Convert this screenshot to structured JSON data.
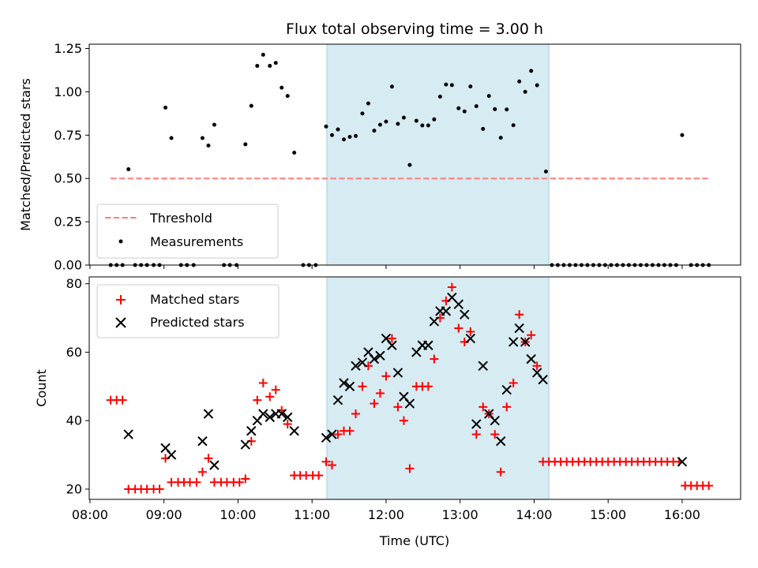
{
  "chart_data": [
    {
      "type": "scatter",
      "title": "Flux total observing time = 3.00 h",
      "xlabel": "",
      "ylabel": "Matched/Predicted stars",
      "xlim": [
        7.99,
        16.79
      ],
      "ylim": [
        0,
        1.275
      ],
      "yticks": [
        0.0,
        0.25,
        0.5,
        0.75,
        1.0,
        1.25
      ],
      "ytick_labels": [
        "0.00",
        "0.25",
        "0.50",
        "0.75",
        "1.00",
        "1.25"
      ],
      "highlight_span": [
        11.2,
        14.2
      ],
      "highlight_color": "#add8e6",
      "legend_position": "lower-left",
      "threshold": {
        "name": "Threshold",
        "value": 0.5,
        "x": [
          8.28,
          16.36
        ],
        "color": "#ff7f7f"
      },
      "series": [
        {
          "name": "Measurements",
          "color": "#000000",
          "points": [
            [
              8.28,
              0
            ],
            [
              8.36,
              0
            ],
            [
              8.44,
              0
            ],
            [
              8.52,
              0.553
            ],
            [
              8.61,
              0
            ],
            [
              8.69,
              0
            ],
            [
              8.77,
              0
            ],
            [
              8.86,
              0
            ],
            [
              8.94,
              0
            ],
            [
              9.02,
              0.909
            ],
            [
              9.1,
              0.733
            ],
            [
              9.23,
              0
            ],
            [
              9.31,
              0
            ],
            [
              9.4,
              0
            ],
            [
              9.52,
              0.733
            ],
            [
              9.6,
              0.69
            ],
            [
              9.68,
              0.81
            ],
            [
              9.81,
              0
            ],
            [
              9.89,
              0
            ],
            [
              9.98,
              0
            ],
            [
              10.1,
              0.697
            ],
            [
              10.18,
              0.919
            ],
            [
              10.26,
              1.15
            ],
            [
              10.34,
              1.214
            ],
            [
              10.43,
              1.15
            ],
            [
              10.51,
              1.167
            ],
            [
              10.59,
              1.024
            ],
            [
              10.67,
              0.976
            ],
            [
              10.76,
              0.649
            ],
            [
              10.88,
              0
            ],
            [
              10.96,
              0
            ],
            [
              11.05,
              0
            ],
            [
              11.19,
              0.8
            ],
            [
              11.27,
              0.75
            ],
            [
              11.35,
              0.783
            ],
            [
              11.43,
              0.725
            ],
            [
              11.51,
              0.74
            ],
            [
              11.59,
              0.745
            ],
            [
              11.68,
              0.875
            ],
            [
              11.76,
              0.933
            ],
            [
              11.84,
              0.776
            ],
            [
              11.92,
              0.81
            ],
            [
              12.0,
              0.828
            ],
            [
              12.08,
              1.03
            ],
            [
              12.16,
              0.815
            ],
            [
              12.24,
              0.851
            ],
            [
              12.32,
              0.578
            ],
            [
              12.41,
              0.833
            ],
            [
              12.49,
              0.806
            ],
            [
              12.57,
              0.806
            ],
            [
              12.65,
              0.841
            ],
            [
              12.73,
              0.972
            ],
            [
              12.81,
              1.042
            ],
            [
              12.89,
              1.039
            ],
            [
              12.98,
              0.905
            ],
            [
              13.06,
              0.887
            ],
            [
              13.14,
              1.031
            ],
            [
              13.22,
              0.917
            ],
            [
              13.31,
              0.786
            ],
            [
              13.39,
              0.976
            ],
            [
              13.47,
              0.9
            ],
            [
              13.55,
              0.735
            ],
            [
              13.63,
              0.898
            ],
            [
              13.72,
              0.807
            ],
            [
              13.8,
              1.06
            ],
            [
              13.88,
              1.0
            ],
            [
              13.96,
              1.121
            ],
            [
              14.04,
              1.038
            ],
            [
              14.16,
              0.54
            ],
            [
              14.24,
              0
            ],
            [
              14.32,
              0
            ],
            [
              14.4,
              0
            ],
            [
              14.48,
              0
            ],
            [
              14.56,
              0
            ],
            [
              14.64,
              0
            ],
            [
              14.72,
              0
            ],
            [
              14.8,
              0
            ],
            [
              14.88,
              0
            ],
            [
              14.96,
              0
            ],
            [
              15.04,
              0
            ],
            [
              15.12,
              0
            ],
            [
              15.2,
              0
            ],
            [
              15.28,
              0
            ],
            [
              15.36,
              0
            ],
            [
              15.44,
              0
            ],
            [
              15.52,
              0
            ],
            [
              15.6,
              0
            ],
            [
              15.68,
              0
            ],
            [
              15.76,
              0
            ],
            [
              15.84,
              0
            ],
            [
              15.92,
              0
            ],
            [
              16.0,
              0.75
            ],
            [
              16.12,
              0
            ],
            [
              16.2,
              0
            ],
            [
              16.28,
              0
            ],
            [
              16.36,
              0
            ]
          ]
        }
      ]
    },
    {
      "type": "scatter",
      "title": "",
      "xlabel": "Time (UTC)",
      "ylabel": "Count",
      "xlim": [
        7.99,
        16.79
      ],
      "ylim": [
        17,
        82
      ],
      "yticks": [
        20,
        40,
        60,
        80
      ],
      "xticks": [
        8,
        9,
        10,
        11,
        12,
        13,
        14,
        15,
        16
      ],
      "xtick_labels": [
        "08:00",
        "09:00",
        "10:00",
        "11:00",
        "12:00",
        "13:00",
        "14:00",
        "15:00",
        "16:00"
      ],
      "highlight_span": [
        11.2,
        14.2
      ],
      "highlight_color": "#add8e6",
      "legend_position": "upper-left",
      "series": [
        {
          "name": "Matched stars",
          "marker": "+",
          "color": "#ff0000",
          "points": [
            [
              8.28,
              46
            ],
            [
              8.36,
              46
            ],
            [
              8.44,
              46
            ],
            [
              8.52,
              20
            ],
            [
              8.61,
              20
            ],
            [
              8.69,
              20
            ],
            [
              8.77,
              20
            ],
            [
              8.86,
              20
            ],
            [
              8.94,
              20
            ],
            [
              9.02,
              29
            ],
            [
              9.1,
              22
            ],
            [
              9.19,
              22
            ],
            [
              9.27,
              22
            ],
            [
              9.35,
              22
            ],
            [
              9.44,
              22
            ],
            [
              9.52,
              25
            ],
            [
              9.6,
              29
            ],
            [
              9.68,
              22
            ],
            [
              9.77,
              22
            ],
            [
              9.85,
              22
            ],
            [
              9.94,
              22
            ],
            [
              10.02,
              22
            ],
            [
              10.1,
              23
            ],
            [
              10.18,
              34
            ],
            [
              10.26,
              46
            ],
            [
              10.34,
              51
            ],
            [
              10.43,
              47
            ],
            [
              10.51,
              49
            ],
            [
              10.59,
              43
            ],
            [
              10.67,
              39
            ],
            [
              10.76,
              24
            ],
            [
              10.84,
              24
            ],
            [
              10.92,
              24
            ],
            [
              11.01,
              24
            ],
            [
              11.09,
              24
            ],
            [
              11.19,
              28
            ],
            [
              11.27,
              27
            ],
            [
              11.35,
              36
            ],
            [
              11.43,
              37
            ],
            [
              11.51,
              37
            ],
            [
              11.59,
              42
            ],
            [
              11.68,
              50
            ],
            [
              11.76,
              56
            ],
            [
              11.84,
              45
            ],
            [
              11.92,
              48
            ],
            [
              12.0,
              53
            ],
            [
              12.08,
              64
            ],
            [
              12.16,
              44
            ],
            [
              12.24,
              40
            ],
            [
              12.32,
              26
            ],
            [
              12.41,
              50
            ],
            [
              12.49,
              50
            ],
            [
              12.57,
              50
            ],
            [
              12.65,
              58
            ],
            [
              12.73,
              70
            ],
            [
              12.81,
              75
            ],
            [
              12.89,
              79
            ],
            [
              12.98,
              67
            ],
            [
              13.06,
              63
            ],
            [
              13.14,
              66
            ],
            [
              13.22,
              36
            ],
            [
              13.31,
              44
            ],
            [
              13.39,
              42
            ],
            [
              13.47,
              36
            ],
            [
              13.55,
              25
            ],
            [
              13.63,
              44
            ],
            [
              13.72,
              51
            ],
            [
              13.8,
              71
            ],
            [
              13.88,
              63
            ],
            [
              13.96,
              65
            ],
            [
              14.04,
              56
            ],
            [
              14.12,
              28
            ],
            [
              14.2,
              28
            ],
            [
              14.28,
              28
            ],
            [
              14.36,
              28
            ],
            [
              14.44,
              28
            ],
            [
              14.52,
              28
            ],
            [
              14.6,
              28
            ],
            [
              14.68,
              28
            ],
            [
              14.76,
              28
            ],
            [
              14.84,
              28
            ],
            [
              14.92,
              28
            ],
            [
              15.0,
              28
            ],
            [
              15.08,
              28
            ],
            [
              15.16,
              28
            ],
            [
              15.24,
              28
            ],
            [
              15.32,
              28
            ],
            [
              15.4,
              28
            ],
            [
              15.48,
              28
            ],
            [
              15.56,
              28
            ],
            [
              15.64,
              28
            ],
            [
              15.72,
              28
            ],
            [
              15.8,
              28
            ],
            [
              15.88,
              28
            ],
            [
              15.96,
              28
            ],
            [
              16.04,
              21
            ],
            [
              16.12,
              21
            ],
            [
              16.2,
              21
            ],
            [
              16.28,
              21
            ],
            [
              16.36,
              21
            ]
          ]
        },
        {
          "name": "Predicted stars",
          "marker": "x",
          "color": "#000000",
          "points": [
            [
              8.52,
              36
            ],
            [
              9.02,
              32
            ],
            [
              9.1,
              30
            ],
            [
              9.52,
              34
            ],
            [
              9.6,
              42
            ],
            [
              9.68,
              27
            ],
            [
              10.1,
              33
            ],
            [
              10.18,
              37
            ],
            [
              10.26,
              40
            ],
            [
              10.34,
              42
            ],
            [
              10.43,
              41
            ],
            [
              10.51,
              42
            ],
            [
              10.59,
              42
            ],
            [
              10.67,
              41
            ],
            [
              10.76,
              37
            ],
            [
              11.19,
              35
            ],
            [
              11.27,
              36
            ],
            [
              11.35,
              46
            ],
            [
              11.43,
              51
            ],
            [
              11.51,
              50
            ],
            [
              11.59,
              56
            ],
            [
              11.68,
              57
            ],
            [
              11.76,
              60
            ],
            [
              11.84,
              58
            ],
            [
              11.92,
              59
            ],
            [
              12.0,
              64
            ],
            [
              12.08,
              62
            ],
            [
              12.16,
              54
            ],
            [
              12.24,
              47
            ],
            [
              12.32,
              45
            ],
            [
              12.41,
              60
            ],
            [
              12.49,
              62
            ],
            [
              12.57,
              62
            ],
            [
              12.65,
              69
            ],
            [
              12.73,
              72
            ],
            [
              12.81,
              72
            ],
            [
              12.89,
              76
            ],
            [
              12.98,
              74
            ],
            [
              13.06,
              71
            ],
            [
              13.14,
              64
            ],
            [
              13.22,
              39
            ],
            [
              13.31,
              56
            ],
            [
              13.39,
              42
            ],
            [
              13.47,
              40
            ],
            [
              13.55,
              34
            ],
            [
              13.63,
              49
            ],
            [
              13.72,
              63
            ],
            [
              13.8,
              67
            ],
            [
              13.88,
              63
            ],
            [
              13.96,
              58
            ],
            [
              14.04,
              54
            ],
            [
              14.12,
              52
            ],
            [
              16.0,
              28
            ]
          ]
        }
      ]
    }
  ]
}
